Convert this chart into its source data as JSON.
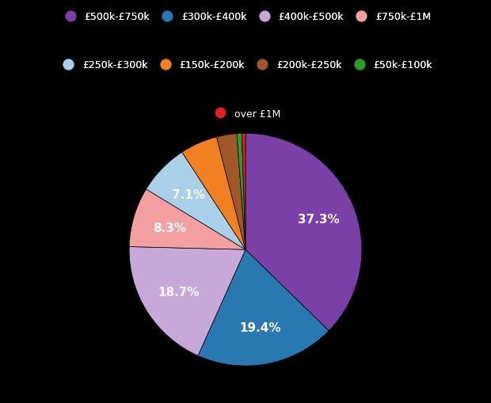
{
  "labels": [
    "£500k-£750k",
    "£300k-£400k",
    "£400k-£500k",
    "£750k-£1M",
    "£250k-£300k",
    "£150k-£200k",
    "£200k-£250k",
    "£50k-£100k",
    "over £1M"
  ],
  "values": [
    37.3,
    19.4,
    18.7,
    8.3,
    7.1,
    5.2,
    2.8,
    0.7,
    0.5
  ],
  "colors": [
    "#7B3FA8",
    "#2878B2",
    "#C8A8D8",
    "#F4A0A0",
    "#A8D0E8",
    "#F08020",
    "#A05828",
    "#28A028",
    "#E02020"
  ],
  "autopct_labels": [
    "37.3%",
    "19.4%",
    "18.7%",
    "8.3%",
    "7.1%",
    "",
    "",
    "",
    ""
  ],
  "legend_order": [
    "£500k-£750k",
    "£300k-£400k",
    "£400k-£500k",
    "£750k-£1M",
    "£250k-£300k",
    "£150k-£200k",
    "£200k-£250k",
    "£50k-£100k",
    "over £1M"
  ],
  "legend_colors": [
    "#7B3FA8",
    "#2878B2",
    "#C8A8D8",
    "#F4A0A0",
    "#A8D0E8",
    "#F08020",
    "#A05828",
    "#28A028",
    "#E02020"
  ],
  "background_color": "#000000",
  "text_color": "#ffffff",
  "figsize": [
    6.2,
    5.1
  ],
  "dpi": 100
}
